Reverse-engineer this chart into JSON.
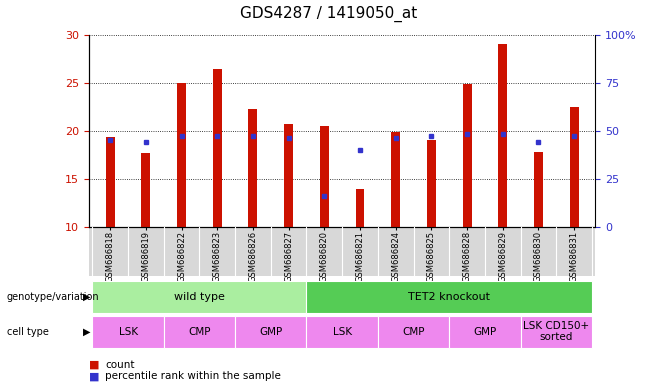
{
  "title": "GDS4287 / 1419050_at",
  "samples": [
    "GSM686818",
    "GSM686819",
    "GSM686822",
    "GSM686823",
    "GSM686826",
    "GSM686827",
    "GSM686820",
    "GSM686821",
    "GSM686824",
    "GSM686825",
    "GSM686828",
    "GSM686829",
    "GSM686830",
    "GSM686831"
  ],
  "counts": [
    19.3,
    17.7,
    25.0,
    26.4,
    22.2,
    20.7,
    20.5,
    13.9,
    19.8,
    19.0,
    24.8,
    29.0,
    17.8,
    22.5
  ],
  "percentile_ranks": [
    45,
    44,
    47,
    47,
    47,
    46,
    16,
    40,
    46,
    47,
    48,
    48,
    44,
    47
  ],
  "bar_color": "#cc1100",
  "dot_color": "#3333cc",
  "ylim_left": [
    10,
    30
  ],
  "ylim_right": [
    0,
    100
  ],
  "yticks_left": [
    10,
    15,
    20,
    25,
    30
  ],
  "yticks_right": [
    0,
    25,
    50,
    75,
    100
  ],
  "yticklabels_right": [
    "0",
    "25",
    "50",
    "75",
    "100%"
  ],
  "genotype_groups": [
    {
      "label": "wild type",
      "start": 0,
      "end": 6,
      "color": "#aaeea0"
    },
    {
      "label": "TET2 knockout",
      "start": 6,
      "end": 14,
      "color": "#55cc55"
    }
  ],
  "cell_type_groups": [
    {
      "label": "LSK",
      "start": 0,
      "end": 2,
      "color": "#ee88ee"
    },
    {
      "label": "CMP",
      "start": 2,
      "end": 4,
      "color": "#ee88ee"
    },
    {
      "label": "GMP",
      "start": 4,
      "end": 6,
      "color": "#ee88ee"
    },
    {
      "label": "LSK",
      "start": 6,
      "end": 8,
      "color": "#ee88ee"
    },
    {
      "label": "CMP",
      "start": 8,
      "end": 10,
      "color": "#ee88ee"
    },
    {
      "label": "GMP",
      "start": 10,
      "end": 12,
      "color": "#ee88ee"
    },
    {
      "label": "LSK CD150+\nsorted",
      "start": 12,
      "end": 14,
      "color": "#ee88ee"
    }
  ],
  "legend_items": [
    {
      "label": "count",
      "color": "#cc1100"
    },
    {
      "label": "percentile rank within the sample",
      "color": "#3333cc"
    }
  ],
  "bar_width": 0.25,
  "left_tick_color": "#cc1100",
  "right_tick_color": "#3333cc",
  "plot_bg": "#ffffff",
  "tick_area_bg": "#d8d8d8"
}
